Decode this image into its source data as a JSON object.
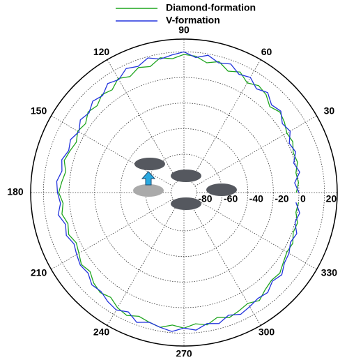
{
  "chart_data": {
    "type": "polar-line",
    "x": [
      0,
      5,
      10,
      15,
      20,
      25,
      30,
      35,
      40,
      45,
      50,
      55,
      60,
      65,
      70,
      75,
      80,
      85,
      90,
      95,
      100,
      105,
      110,
      115,
      120,
      125,
      130,
      135,
      140,
      145,
      150,
      155,
      160,
      165,
      170,
      175,
      180,
      185,
      190,
      195,
      200,
      205,
      210,
      215,
      220,
      225,
      230,
      235,
      240,
      245,
      250,
      255,
      260,
      265,
      270,
      275,
      280,
      285,
      290,
      295,
      300,
      305,
      310,
      315,
      320,
      325,
      330,
      335,
      340,
      345,
      350,
      355
    ],
    "xlim": [
      0,
      360
    ],
    "xticks": [
      0,
      30,
      60,
      90,
      120,
      150,
      180,
      210,
      240,
      270,
      300,
      330
    ],
    "ylim": [
      -90,
      30
    ],
    "yticks": [
      -80,
      -60,
      -40,
      -20,
      0,
      20
    ],
    "grid": true,
    "legend": "top",
    "series": [
      {
        "name": "Diamond-formation",
        "color": "#1fa51f",
        "values": [
          -2,
          0,
          -1,
          2,
          1,
          4,
          3,
          6,
          8,
          5,
          10,
          12,
          9,
          14,
          11,
          16,
          13,
          17,
          18,
          15,
          17,
          12,
          14,
          10,
          13,
          8,
          10,
          6,
          8,
          4,
          6,
          3,
          5,
          7,
          4,
          6,
          8,
          5,
          7,
          4,
          6,
          3,
          5,
          8,
          6,
          10,
          12,
          10,
          14,
          16,
          13,
          15,
          17,
          14,
          16,
          13,
          15,
          11,
          14,
          12,
          10,
          13,
          9,
          7,
          8,
          5,
          3,
          4,
          1,
          2,
          -1,
          0
        ]
      },
      {
        "name": "V-formation",
        "color": "#2233dd",
        "values": [
          0,
          -3,
          2,
          -1,
          3,
          1,
          6,
          4,
          9,
          7,
          12,
          9,
          14,
          12,
          17,
          15,
          19,
          16,
          20,
          18,
          16,
          19,
          15,
          17,
          12,
          14,
          9,
          11,
          7,
          9,
          5,
          8,
          6,
          9,
          7,
          10,
          9,
          7,
          10,
          6,
          8,
          5,
          7,
          9,
          8,
          12,
          11,
          14,
          16,
          13,
          18,
          15,
          17,
          19,
          16,
          18,
          14,
          16,
          12,
          15,
          13,
          11,
          12,
          8,
          10,
          6,
          5,
          2,
          4,
          0,
          2,
          -2
        ]
      }
    ]
  }
}
